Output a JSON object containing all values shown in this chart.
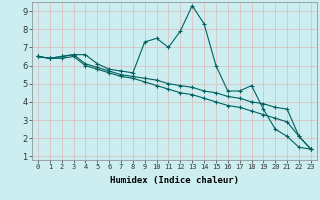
{
  "title": "",
  "xlabel": "Humidex (Indice chaleur)",
  "bg_color": "#cceef0",
  "grid_color": "#d8c8c8",
  "line_color": "#006060",
  "xlim": [
    -0.5,
    23.5
  ],
  "ylim": [
    0.8,
    9.5
  ],
  "xticks": [
    0,
    1,
    2,
    3,
    4,
    5,
    6,
    7,
    8,
    9,
    10,
    11,
    12,
    13,
    14,
    15,
    16,
    17,
    18,
    19,
    20,
    21,
    22,
    23
  ],
  "yticks": [
    1,
    2,
    3,
    4,
    5,
    6,
    7,
    8,
    9
  ],
  "series": [
    [
      6.5,
      6.4,
      6.5,
      6.6,
      6.6,
      6.1,
      5.8,
      5.7,
      5.6,
      7.3,
      7.5,
      7.0,
      7.9,
      9.3,
      8.3,
      6.0,
      4.6,
      4.6,
      4.9,
      3.6,
      2.5,
      2.1,
      1.5,
      1.4
    ],
    [
      6.5,
      6.4,
      6.5,
      6.6,
      6.1,
      5.9,
      5.7,
      5.5,
      5.4,
      5.3,
      5.2,
      5.0,
      4.9,
      4.8,
      4.6,
      4.5,
      4.3,
      4.2,
      4.0,
      3.9,
      3.7,
      3.6,
      2.1,
      1.4
    ],
    [
      6.5,
      6.4,
      6.4,
      6.5,
      6.0,
      5.8,
      5.6,
      5.4,
      5.3,
      5.1,
      4.9,
      4.7,
      4.5,
      4.4,
      4.2,
      4.0,
      3.8,
      3.7,
      3.5,
      3.3,
      3.1,
      2.9,
      2.1,
      1.4
    ]
  ],
  "xlabel_fontsize": 6.5,
  "tick_fontsize_x": 5.0,
  "tick_fontsize_y": 6.0
}
